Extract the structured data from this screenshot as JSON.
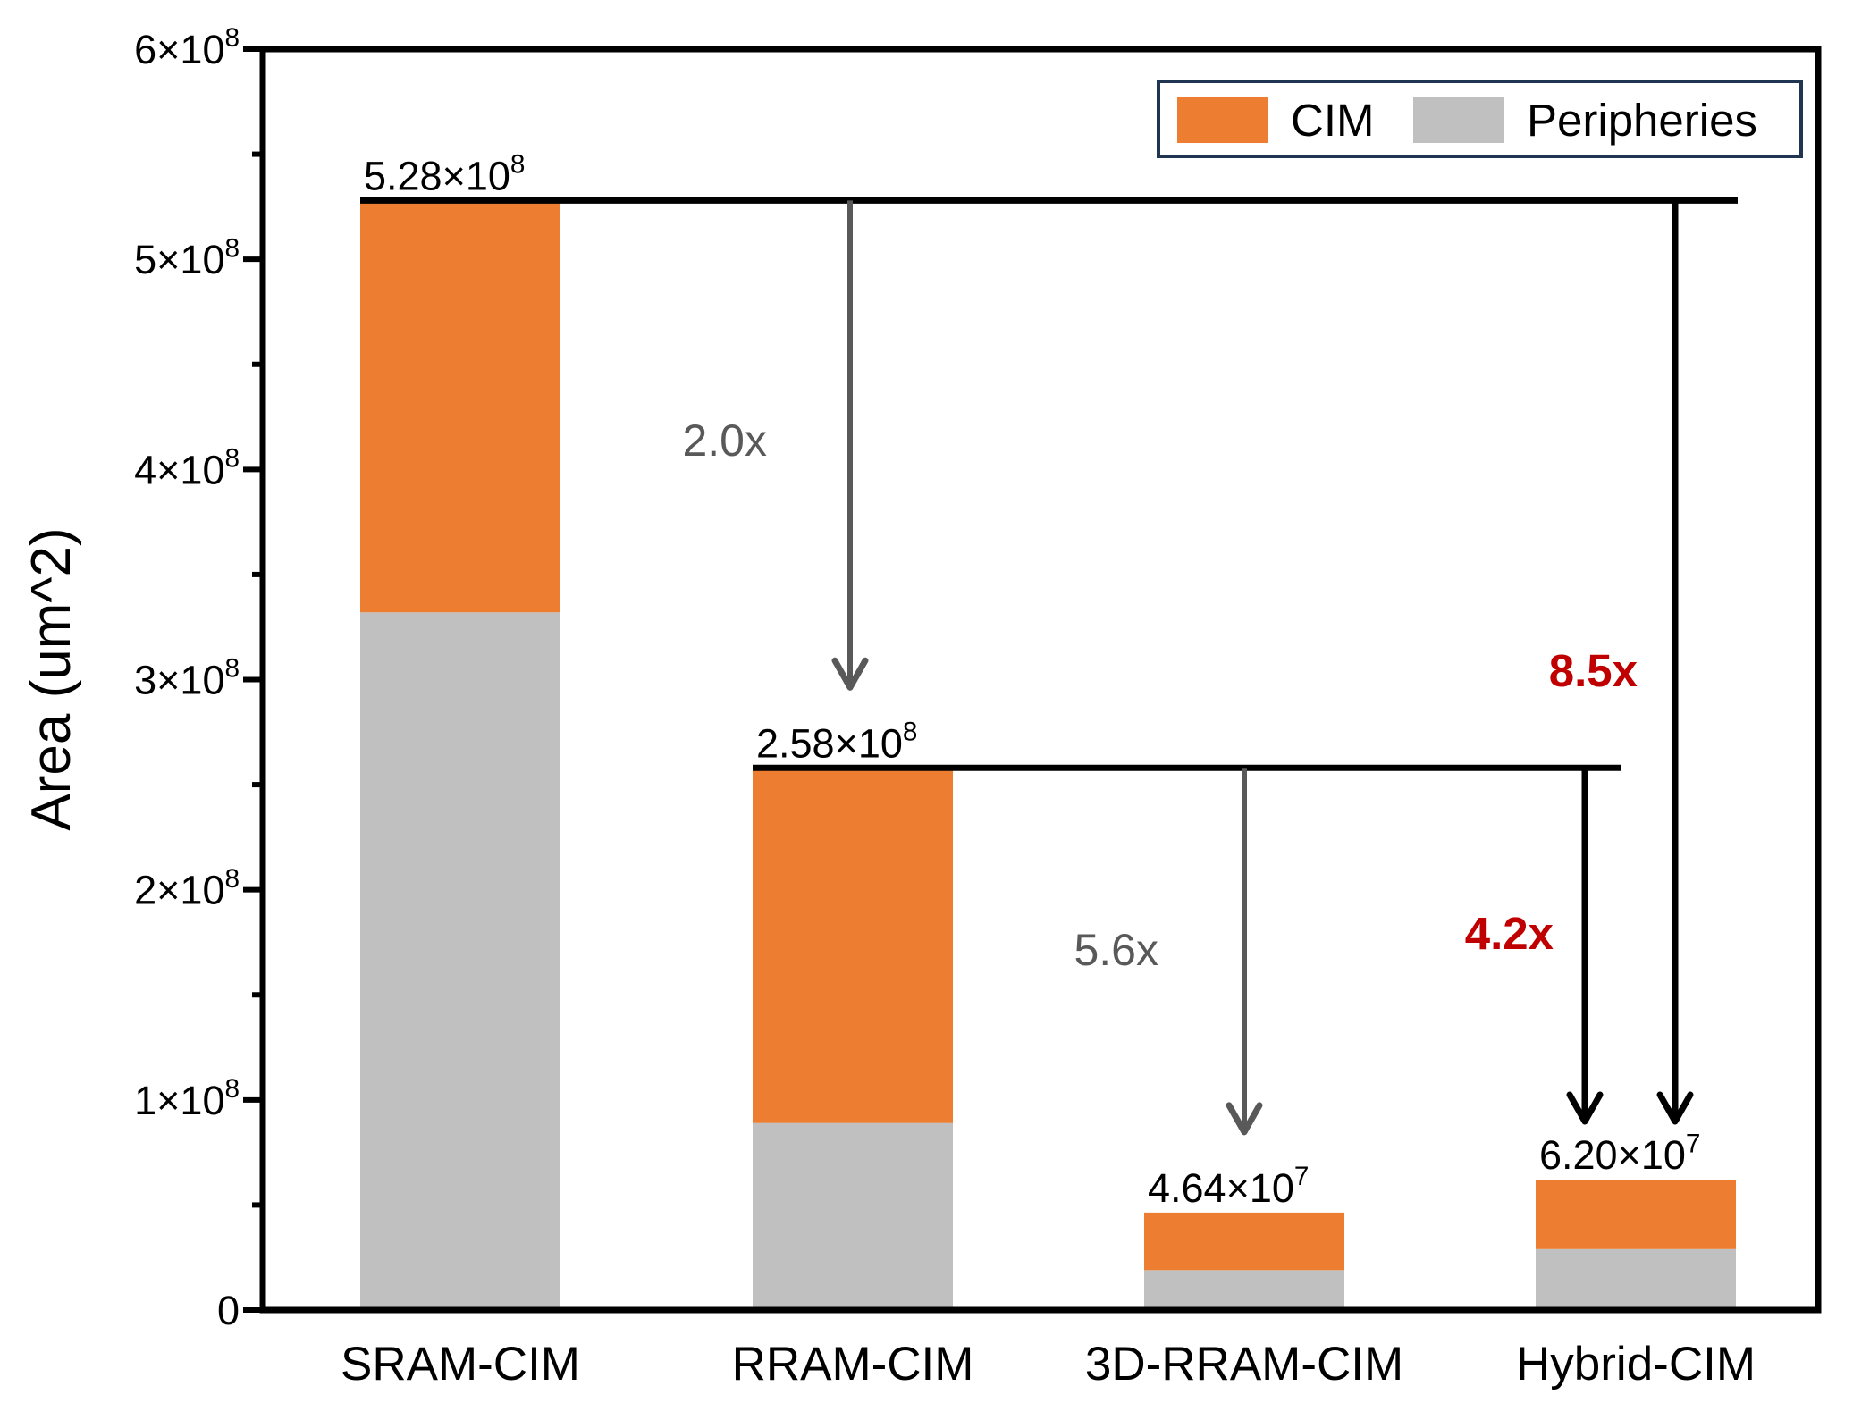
{
  "chart_data": {
    "type": "bar",
    "stacked": true,
    "categories": [
      "SRAM-CIM",
      "RRAM-CIM",
      "3D-RRAM-CIM",
      "Hybrid-CIM"
    ],
    "series": [
      {
        "name": "Peripheries",
        "color": "#c0c0c0",
        "values": [
          332000000.0,
          89000000.0,
          19000000.0,
          29000000.0
        ]
      },
      {
        "name": "CIM",
        "color": "#ed7d31",
        "values": [
          196000000.0,
          169000000.0,
          27400000.0,
          33000000.0
        ]
      }
    ],
    "totals": [
      528000000.0,
      258000000.0,
      46400000.0,
      62000000.0
    ],
    "total_labels": [
      {
        "mantissa": "5.28×10",
        "exp": "8"
      },
      {
        "mantissa": "2.58×10",
        "exp": "8"
      },
      {
        "mantissa": "4.64×10",
        "exp": "7"
      },
      {
        "mantissa": "6.20×10",
        "exp": "7"
      }
    ],
    "ylabel": "Area (um^2)",
    "xlabel": "",
    "ylim": [
      0,
      600000000.0
    ],
    "yticks": [
      0,
      100000000.0,
      200000000.0,
      300000000.0,
      400000000.0,
      500000000.0,
      600000000.0
    ],
    "ytick_labels": [
      {
        "mantissa": "0",
        "exp": ""
      },
      {
        "mantissa": "1×10",
        "exp": "8"
      },
      {
        "mantissa": "2×10",
        "exp": "8"
      },
      {
        "mantissa": "3×10",
        "exp": "8"
      },
      {
        "mantissa": "4×10",
        "exp": "8"
      },
      {
        "mantissa": "5×10",
        "exp": "8"
      },
      {
        "mantissa": "6×10",
        "exp": "8"
      }
    ],
    "legend": {
      "position": "top-right",
      "entries": [
        "CIM",
        "Peripheries"
      ]
    },
    "annotations": [
      {
        "label": "2.0x",
        "from": 0,
        "to": 1,
        "color": "#595959",
        "bold": false
      },
      {
        "label": "5.6x",
        "from": 1,
        "to": 2,
        "color": "#595959",
        "bold": false
      },
      {
        "label": "4.2x",
        "from": 1,
        "to": 3,
        "color": "#c00000",
        "bold": true
      },
      {
        "label": "8.5x",
        "from": 0,
        "to": 3,
        "color": "#c00000",
        "bold": true
      }
    ]
  }
}
